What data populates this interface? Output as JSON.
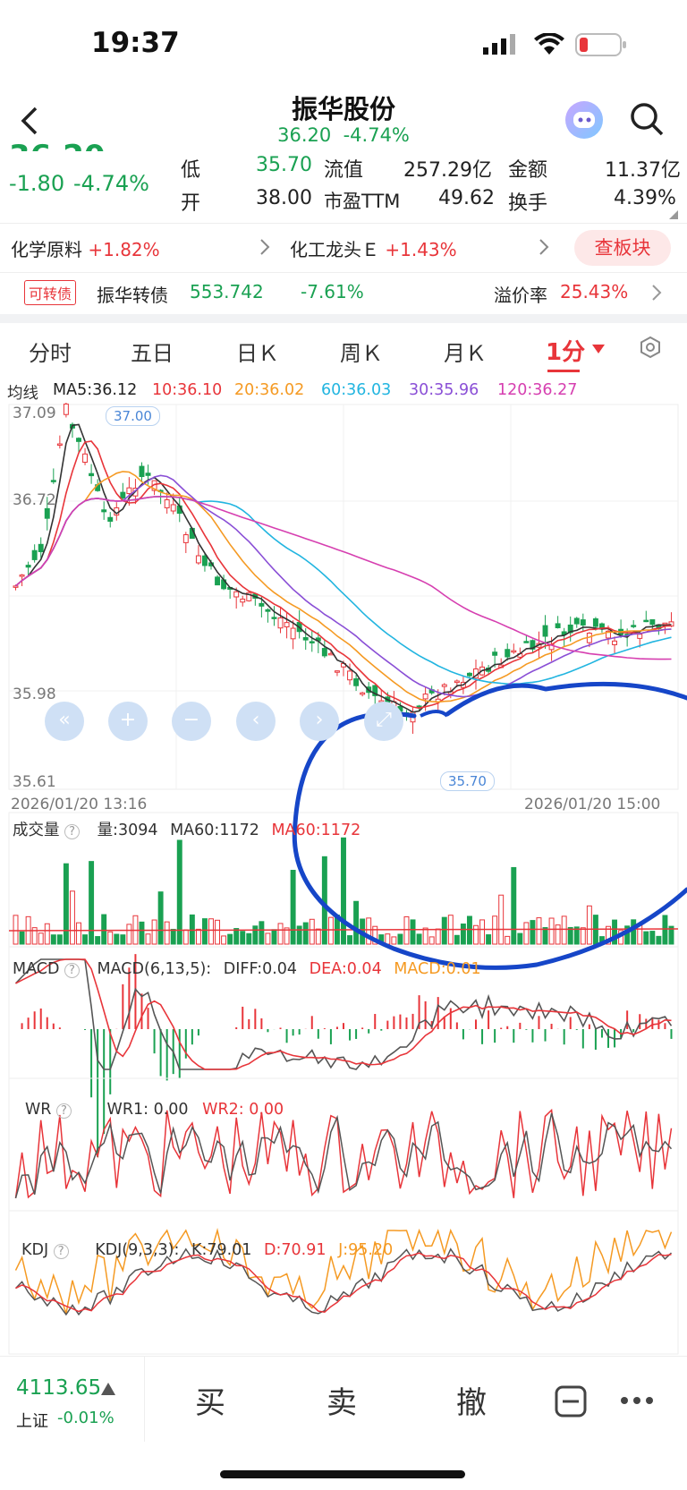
{
  "status_bar": {
    "time": "19:37"
  },
  "header": {
    "title": "振华股份",
    "price": "36.20",
    "change_pct": "-4.74%"
  },
  "quote": {
    "change": "-1.80",
    "change_pct": "-4.74%",
    "low_label": "低",
    "low": "35.70",
    "open_label": "开",
    "open": "38.00",
    "float_cap_label": "流值",
    "float_cap": "257.29亿",
    "pe_label": "市盈TTM",
    "pe": "49.62",
    "amount_label": "金额",
    "amount": "11.37亿",
    "turnover_label": "换手",
    "turnover": "4.39%"
  },
  "sectors": [
    {
      "name": "化学原料",
      "change": "+1.82%"
    },
    {
      "name": "化工龙头Ｅ",
      "change": "+1.43%"
    }
  ],
  "sector_button": "查板块",
  "convertible": {
    "tag": "可转债",
    "name": "振华转债",
    "price": "553.742",
    "change": "-7.61%",
    "premium_label": "溢价率",
    "premium": "25.43%"
  },
  "tabs": [
    "分时",
    "五日",
    "日Ｋ",
    "周Ｋ",
    "月Ｋ",
    "1分"
  ],
  "active_tab": "1分",
  "ma_legend": {
    "label": "均线",
    "items": [
      {
        "text": "MA5:36.12",
        "color": "#333333"
      },
      {
        "text": "10:36.10",
        "color": "#e8353a"
      },
      {
        "text": "20:36.02",
        "color": "#f59a23"
      },
      {
        "text": "60:36.03",
        "color": "#22b5e0"
      },
      {
        "text": "30:35.96",
        "color": "#8a4fd6"
      },
      {
        "text": "120:36.27",
        "color": "#d63fb0"
      }
    ]
  },
  "price_chart": {
    "y_ticks": [
      "37.09",
      "36.72",
      "35.98",
      "35.61"
    ],
    "high_marker": "37.00",
    "low_marker": "35.70",
    "start_time": "2026/01/20 13:16",
    "end_time": "2026/01/20 15:00"
  },
  "volume_panel": {
    "label": "成交量",
    "vol": "量:3094",
    "ma60_a": "MA60:1172",
    "ma60_b": "MA60:1172"
  },
  "macd_panel": {
    "label": "MACD",
    "params": "MACD(6,13,5):",
    "diff": "DIFF:0.04",
    "dea": "DEA:0.04",
    "macd": "MACD:0.01"
  },
  "wr_panel": {
    "label": "WR",
    "wr1": "WR1:  0.00",
    "wr2": "WR2:  0.00"
  },
  "kdj_panel": {
    "label": "KDJ",
    "params": "KDJ(9,3,3):",
    "k": "K:79.01",
    "d": "D:70.91",
    "j": "J:95.20"
  },
  "index": {
    "value": "4113.65",
    "name": "上证",
    "change": "-0.01%"
  },
  "actions": {
    "buy": "买",
    "sell": "卖",
    "cancel": "撤"
  },
  "colors": {
    "up": "#e8353a",
    "down": "#1aa152",
    "accent": "#e8353a",
    "annotation": "#1646c8"
  }
}
